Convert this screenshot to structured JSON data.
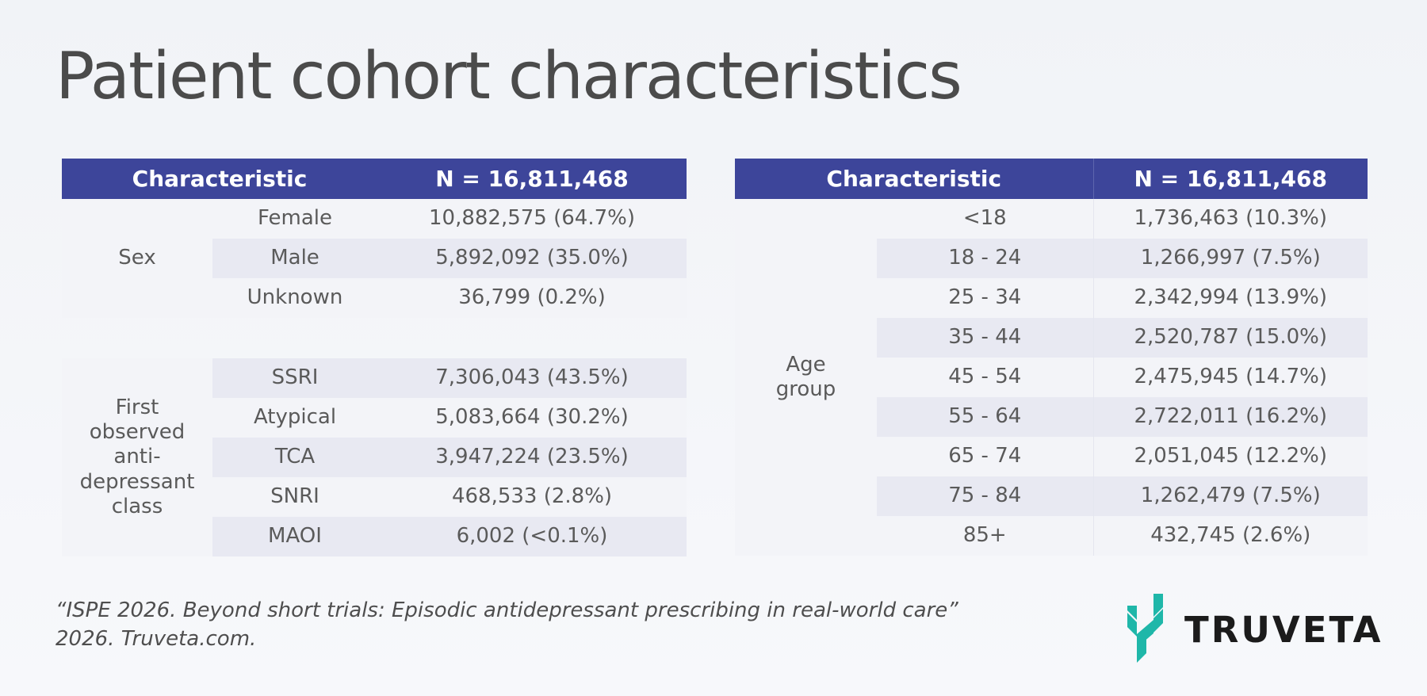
{
  "title": "Patient cohort characteristics",
  "left_table": {
    "header": {
      "characteristic": "Characteristic",
      "n": "N = 16,811,468"
    },
    "sex": {
      "label": "Sex",
      "rows": [
        {
          "label": "Female",
          "value": "10,882,575 (64.7%)"
        },
        {
          "label": "Male",
          "value": "5,892,092 (35.0%)"
        },
        {
          "label": "Unknown",
          "value": "36,799 (0.2%)"
        }
      ]
    },
    "drug_class": {
      "label": "First observed anti-depressant class",
      "rows": [
        {
          "label": "SSRI",
          "value": "7,306,043 (43.5%)"
        },
        {
          "label": "Atypical",
          "value": "5,083,664 (30.2%)"
        },
        {
          "label": "TCA",
          "value": "3,947,224 (23.5%)"
        },
        {
          "label": "SNRI",
          "value": "468,533 (2.8%)"
        },
        {
          "label": "MAOI",
          "value": "6,002 (<0.1%)"
        }
      ]
    }
  },
  "right_table": {
    "header": {
      "characteristic": "Characteristic",
      "n": "N = 16,811,468"
    },
    "age_group": {
      "label": "Age group",
      "rows": [
        {
          "label": "<18",
          "value": "1,736,463 (10.3%)"
        },
        {
          "label": "18 - 24",
          "value": "1,266,997 (7.5%)"
        },
        {
          "label": "25 - 34",
          "value": "2,342,994 (13.9%)"
        },
        {
          "label": "35 - 44",
          "value": "2,520,787 (15.0%)"
        },
        {
          "label": "45 - 54",
          "value": "2,475,945 (14.7%)"
        },
        {
          "label": "55 - 64",
          "value": "2,722,011 (16.2%)"
        },
        {
          "label": "65 - 74",
          "value": "2,051,045 (12.2%)"
        },
        {
          "label": "75 - 84",
          "value": "1,262,479 (7.5%)"
        },
        {
          "label": "85+",
          "value": "432,745 (2.6%)"
        }
      ]
    }
  },
  "citation": {
    "line1": "“ISPE 2026. Beyond short trials: Episodic antidepressant prescribing in real-world care”",
    "line2": "2026. Truveta.com."
  },
  "logo": {
    "text": "TRUVETA",
    "icon": "truveta-leaf-icon",
    "color": "#1fb7a9"
  },
  "colors": {
    "header_bg": "#3d459a",
    "row_light": "#f3f4f8",
    "row_dark": "#e8e9f2"
  }
}
